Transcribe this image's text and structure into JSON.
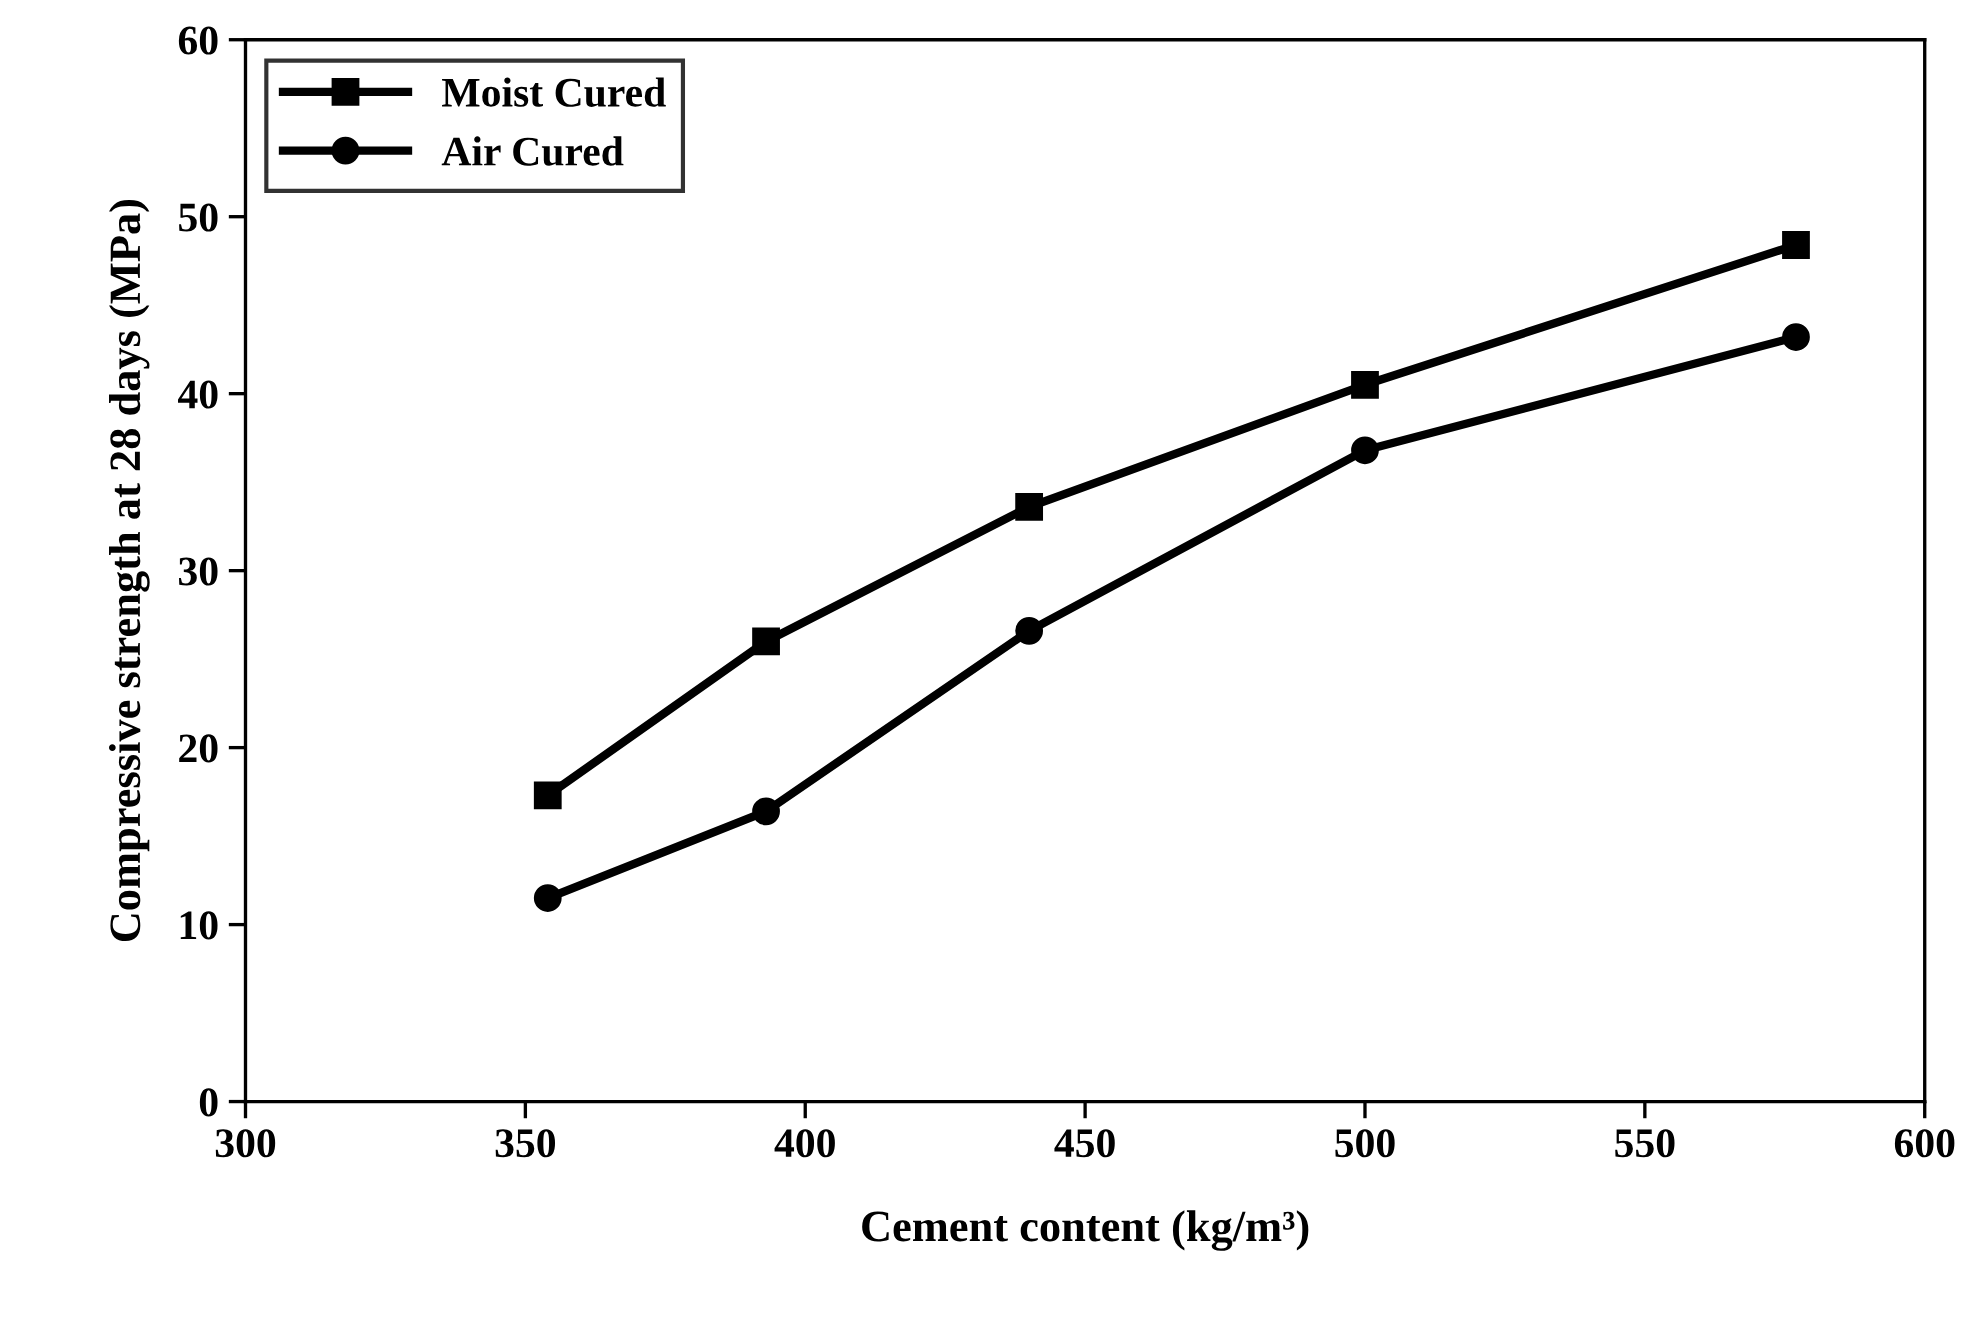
{
  "chart_data": {
    "type": "line",
    "xlabel": "Cement content (kg/m³)",
    "ylabel": "Compressive strength at 28 days (MPa)",
    "xlim": [
      300,
      600
    ],
    "xticks": [
      300,
      350,
      400,
      450,
      500,
      550,
      600
    ],
    "ylim": [
      0,
      60
    ],
    "yticks": [
      0,
      10,
      20,
      30,
      40,
      50,
      60
    ],
    "x": [
      354,
      393,
      440,
      500,
      577
    ],
    "series": [
      {
        "name": "Moist Cured",
        "color": "#000000",
        "marker": "square",
        "values": [
          17.3,
          26.0,
          33.6,
          40.5,
          48.4
        ]
      },
      {
        "name": "Air Cured",
        "color": "#000000",
        "marker": "circle",
        "values": [
          11.5,
          16.4,
          26.6,
          36.8,
          43.2
        ]
      }
    ],
    "grid": false,
    "legend": "top left",
    "line_style": "solid"
  }
}
